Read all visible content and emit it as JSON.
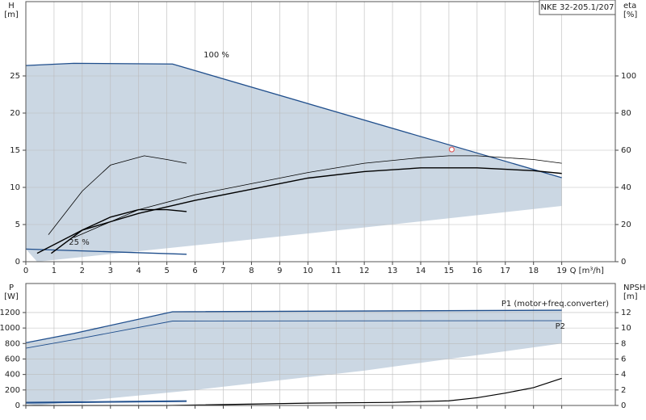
{
  "chart_data": [
    {
      "type": "line",
      "title": "NKE 32-205.1/207",
      "ylabel": "H",
      "yunit": "[m]",
      "y2label": "eta",
      "y2unit": "[%]",
      "xlabel": "Q [m³/h]",
      "xlim": [
        0,
        20.9
      ],
      "xticks": [
        0,
        1,
        2,
        3,
        4,
        5,
        6,
        7,
        8,
        9,
        10,
        11,
        12,
        13,
        14,
        15,
        16,
        17,
        18,
        19
      ],
      "ylim": [
        0,
        35
      ],
      "yticks": [
        0,
        5,
        10,
        15,
        20,
        25
      ],
      "y2lim": [
        0,
        140
      ],
      "y2ticks": [
        0,
        20,
        40,
        60,
        80,
        100
      ],
      "grid": true,
      "shade": {
        "color": "#cbd7e3",
        "x": [
          0,
          0.4,
          6,
          12,
          19
        ],
        "values": [
          1.7,
          0,
          2.2,
          4.6,
          7.5
        ]
      },
      "series": [
        {
          "name": "100 %",
          "color": "#1f4e8c",
          "width": 1.3,
          "x": [
            0,
            1.7,
            5.2,
            19
          ],
          "values": [
            26.4,
            26.7,
            26.6,
            11.3
          ]
        },
        {
          "name": "25 %",
          "color": "#1f4e8c",
          "width": 1.3,
          "x": [
            0,
            5.7
          ],
          "values": [
            1.7,
            1.0
          ]
        },
        {
          "color": "#000000",
          "width": 0.8,
          "axis": "y2",
          "x": [
            1.7,
            4,
            6,
            8,
            10,
            12,
            14,
            15,
            16,
            18,
            19
          ],
          "values": [
            13,
            28,
            36,
            42,
            48,
            53,
            56,
            57,
            57,
            55,
            53
          ]
        },
        {
          "color": "#000000",
          "width": 1.4,
          "axis": "y2",
          "x": [
            0.4,
            2,
            4,
            6,
            8,
            10,
            12,
            14,
            16,
            18,
            19
          ],
          "values": [
            4.5,
            17,
            26,
            33,
            39,
            45,
            48.5,
            50.5,
            50.5,
            49,
            47.5
          ]
        },
        {
          "color": "#000000",
          "width": 0.8,
          "axis": "y2",
          "x": [
            0.8,
            2,
            3,
            4.2,
            5,
            5.7
          ],
          "values": [
            14.5,
            38,
            52,
            57,
            55,
            53
          ]
        },
        {
          "color": "#000000",
          "width": 1.4,
          "axis": "y2",
          "x": [
            0.9,
            2,
            3,
            4,
            5,
            5.7
          ],
          "values": [
            4.5,
            17,
            24,
            28,
            28,
            27
          ]
        }
      ],
      "point": {
        "x": 15.1,
        "y": 15.1,
        "color": "#e06060"
      }
    },
    {
      "type": "line",
      "ylabel": "P",
      "yunit": "[W]",
      "y2label": "NPSH",
      "y2unit": "[m]",
      "xlim": [
        0,
        20.9
      ],
      "xticks": [
        0,
        1,
        2,
        3,
        4,
        5,
        6,
        7,
        8,
        9,
        10,
        11,
        12,
        13,
        14,
        15,
        16,
        17,
        18,
        19
      ],
      "xtick_labels": false,
      "ylim": [
        0,
        1575
      ],
      "yticks": [
        0,
        200,
        400,
        600,
        800,
        1000,
        1200
      ],
      "y2lim": [
        0,
        15.75
      ],
      "y2ticks": [
        0,
        2,
        4,
        6,
        8,
        10,
        12
      ],
      "grid": true,
      "shade": {
        "color": "#cbd7e3",
        "x": [
          0,
          0.4,
          6,
          12,
          19
        ],
        "values": [
          20,
          0,
          200,
          450,
          800
        ]
      },
      "series": [
        {
          "name": "P1 (motor+freq.converter)",
          "color": "#1f4e8c",
          "width": 1.3,
          "x": [
            0,
            1.7,
            5.2,
            19
          ],
          "values": [
            810,
            930,
            1210,
            1230
          ]
        },
        {
          "name": "P2",
          "color": "#1f4e8c",
          "width": 0.9,
          "x": [
            0,
            1.7,
            5.2,
            19
          ],
          "values": [
            740,
            850,
            1090,
            1095
          ]
        },
        {
          "color": "#1f4e8c",
          "width": 1.3,
          "x": [
            0,
            5.7
          ],
          "values": [
            40,
            60
          ]
        },
        {
          "color": "#1f4e8c",
          "width": 0.9,
          "x": [
            0,
            5.7
          ],
          "values": [
            30,
            50
          ]
        },
        {
          "color": "#000000",
          "width": 1.2,
          "axis": "y2",
          "x": [
            0,
            5,
            10,
            13,
            15,
            16,
            17,
            18,
            19
          ],
          "values": [
            0,
            0,
            0.3,
            0.4,
            0.6,
            1.0,
            1.6,
            2.3,
            3.5
          ]
        }
      ]
    }
  ]
}
